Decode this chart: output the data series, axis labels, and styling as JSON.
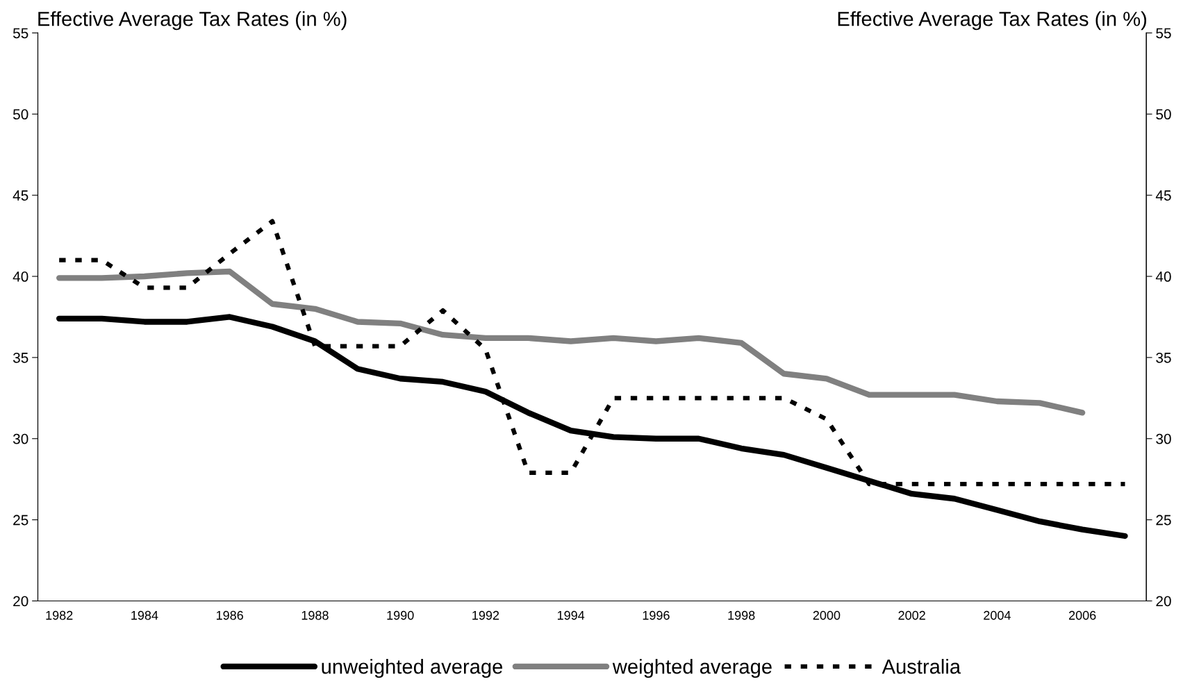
{
  "chart_data": {
    "type": "line",
    "categories": [
      "1982",
      null,
      "1984",
      null,
      "1986",
      null,
      "1988",
      null,
      "1990",
      null,
      "1992",
      null,
      "1994",
      null,
      "1996",
      null,
      "1998",
      null,
      "2000",
      null,
      "2002",
      null,
      "2004",
      null,
      "2006",
      null
    ],
    "series": [
      {
        "name": "unweighted average",
        "color": "#000000",
        "line_style": "solid",
        "values": [
          37.4,
          37.4,
          37.2,
          37.2,
          37.5,
          36.9,
          36.0,
          34.3,
          33.7,
          33.5,
          32.9,
          31.6,
          30.5,
          30.1,
          30.0,
          30.0,
          29.4,
          29.0,
          28.2,
          27.4,
          26.6,
          26.3,
          25.6,
          24.9,
          24.4,
          24.0
        ]
      },
      {
        "name": "weighted average",
        "color": "#808080",
        "line_style": "solid",
        "values": [
          39.9,
          39.9,
          40.0,
          40.2,
          40.3,
          38.3,
          38.0,
          37.2,
          37.1,
          36.4,
          36.2,
          36.2,
          36.0,
          36.2,
          36.0,
          36.2,
          35.9,
          34.0,
          33.7,
          32.7,
          32.7,
          32.7,
          32.3,
          32.2,
          31.6,
          null
        ]
      },
      {
        "name": "Australia",
        "color": "#000000",
        "line_style": "dashed",
        "values": [
          41.0,
          41.0,
          39.3,
          39.3,
          41.4,
          43.4,
          35.7,
          35.7,
          35.7,
          37.9,
          35.5,
          27.9,
          27.9,
          32.5,
          32.5,
          32.5,
          32.5,
          32.5,
          31.2,
          27.2,
          27.2,
          27.2,
          27.2,
          27.2,
          27.2,
          27.2
        ]
      }
    ],
    "ylabel": "Effective Average Tax Rates (in %)",
    "y2label": "Effective Average Tax Rates (in %)",
    "ylim": [
      20,
      55
    ],
    "yticks": [
      20,
      25,
      30,
      35,
      40,
      45,
      50,
      55
    ],
    "y2lim": [
      20,
      55
    ],
    "y2ticks": [
      20,
      25,
      30,
      35,
      40,
      45,
      50,
      55
    ],
    "grid": false,
    "legend": "bottom",
    "marker": "none"
  }
}
